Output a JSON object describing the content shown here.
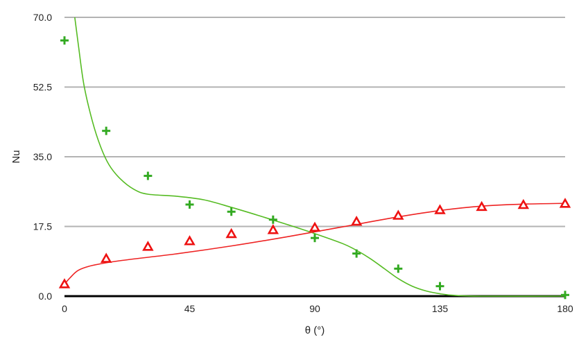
{
  "chart_data": {
    "type": "scatter",
    "title": "",
    "xlabel": "θ (°)",
    "ylabel": "Nu",
    "xlim": [
      0,
      180
    ],
    "ylim": [
      0,
      70
    ],
    "xticks": [
      0,
      45,
      90,
      135,
      180
    ],
    "xtick_labels": [
      "0",
      "45",
      "90",
      "135",
      "180"
    ],
    "yticks": [
      0,
      17.5,
      35,
      52.5,
      70
    ],
    "ytick_labels": [
      "0.0",
      "17.5",
      "35.0",
      "52.5",
      "70.0"
    ],
    "grid": "horizontal",
    "legend": "none",
    "series": [
      {
        "marker": "plus",
        "color": "#33aa22",
        "points": [
          [
            0,
            64.2
          ],
          [
            15,
            41.5
          ],
          [
            30,
            30.2
          ],
          [
            45,
            23.0
          ],
          [
            60,
            21.2
          ],
          [
            75,
            19.2
          ],
          [
            90,
            14.6
          ],
          [
            105,
            10.7
          ],
          [
            120,
            6.9
          ],
          [
            135,
            2.5
          ],
          [
            180,
            0.3
          ]
        ]
      },
      {
        "marker": "triangle",
        "color": "#ee1111",
        "points": [
          [
            0,
            3.0
          ],
          [
            15,
            9.4
          ],
          [
            30,
            12.4
          ],
          [
            45,
            13.8
          ],
          [
            60,
            15.6
          ],
          [
            75,
            16.6
          ],
          [
            90,
            17.2
          ],
          [
            105,
            18.7
          ],
          [
            120,
            20.2
          ],
          [
            135,
            21.6
          ],
          [
            150,
            22.4
          ],
          [
            165,
            22.9
          ],
          [
            180,
            23.2
          ]
        ]
      }
    ],
    "fit_curves": [
      {
        "color": "#55bb22",
        "points": [
          [
            3.7,
            70
          ],
          [
            5,
            63
          ],
          [
            7,
            53
          ],
          [
            10,
            44
          ],
          [
            13,
            37.5
          ],
          [
            16,
            33
          ],
          [
            20,
            29.5
          ],
          [
            25,
            26.8
          ],
          [
            30,
            25.6
          ],
          [
            40,
            25.1
          ],
          [
            50,
            24.2
          ],
          [
            60,
            22.3
          ],
          [
            70,
            20.2
          ],
          [
            80,
            18.0
          ],
          [
            90,
            15.7
          ],
          [
            100,
            13.2
          ],
          [
            105,
            11.5
          ],
          [
            110,
            9.4
          ],
          [
            115,
            6.9
          ],
          [
            120,
            4.4
          ],
          [
            125,
            2.5
          ],
          [
            130,
            1.3
          ],
          [
            135,
            0.6
          ],
          [
            140,
            0.2
          ],
          [
            150,
            0.0
          ],
          [
            180,
            0.0
          ]
        ]
      },
      {
        "color": "#ee2222",
        "points": [
          [
            0,
            3.0
          ],
          [
            2,
            4.6
          ],
          [
            5,
            6.5
          ],
          [
            10,
            7.7
          ],
          [
            20,
            8.9
          ],
          [
            40,
            10.6
          ],
          [
            60,
            12.6
          ],
          [
            80,
            14.9
          ],
          [
            100,
            17.4
          ],
          [
            120,
            19.9
          ],
          [
            135,
            21.5
          ],
          [
            150,
            22.6
          ],
          [
            165,
            23.1
          ],
          [
            180,
            23.3
          ]
        ]
      }
    ]
  }
}
